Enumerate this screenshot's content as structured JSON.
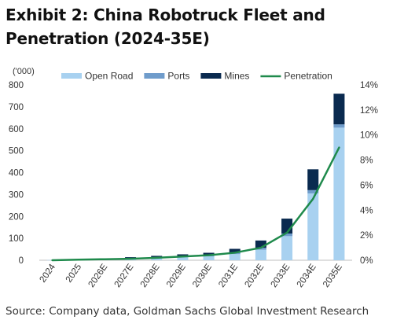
{
  "title": "Exhibit 2: China Robotruck Fleet and Penetration (2024-35E)",
  "source": "Source: Company data, Goldman Sachs Global Investment Research",
  "chart_data": {
    "type": "bar",
    "stacked": true,
    "unit_label": "('000)",
    "categories": [
      "2024",
      "2025",
      "2026E",
      "2027E",
      "2028E",
      "2029E",
      "2030E",
      "2031E",
      "2032E",
      "2033E",
      "2034E",
      "2035E"
    ],
    "series": [
      {
        "name": "Open Road",
        "type": "bar",
        "axis": "left",
        "color": "#a8d1f0",
        "values": [
          1,
          2,
          4,
          7,
          10,
          14,
          18,
          28,
          48,
          110,
          305,
          605
        ]
      },
      {
        "name": "Ports",
        "type": "bar",
        "axis": "left",
        "color": "#6f9ccb",
        "values": [
          0,
          1,
          1,
          2,
          3,
          4,
          5,
          7,
          9,
          12,
          15,
          15
        ]
      },
      {
        "name": "Mines",
        "type": "bar",
        "axis": "left",
        "color": "#0a2a4f",
        "values": [
          0,
          1,
          3,
          5,
          7,
          9,
          11,
          17,
          33,
          68,
          95,
          140
        ]
      },
      {
        "name": "Penetration",
        "type": "line",
        "axis": "right",
        "color": "#1f8a4c",
        "values": [
          0.0,
          0.0005,
          0.0008,
          0.0012,
          0.002,
          0.003,
          0.004,
          0.006,
          0.01,
          0.022,
          0.049,
          0.09
        ]
      }
    ],
    "y_left": {
      "min": 0,
      "max": 800,
      "ticks": [
        0,
        100,
        200,
        300,
        400,
        500,
        600,
        700,
        800
      ]
    },
    "y_right": {
      "min": 0,
      "max": 0.14,
      "ticks": [
        0,
        0.02,
        0.04,
        0.06,
        0.08,
        0.1,
        0.12,
        0.14
      ],
      "tick_labels": [
        "0%",
        "2%",
        "4%",
        "6%",
        "8%",
        "10%",
        "12%",
        "14%"
      ]
    },
    "legend_position": "top",
    "grid": false
  }
}
